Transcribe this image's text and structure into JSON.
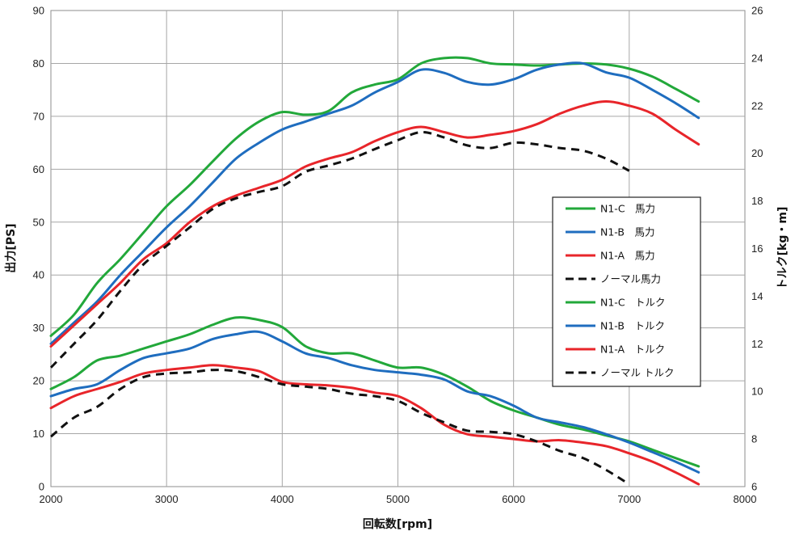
{
  "chart_data": {
    "type": "line",
    "xlabel": "回転数[rpm]",
    "ylabel_left": "出力[PS]",
    "ylabel_right": "トルク[kg・m]",
    "x_ticks": [
      "2000",
      "3000",
      "4000",
      "5000",
      "6000",
      "7000",
      "8000"
    ],
    "y_left_ticks": [
      "0",
      "10",
      "20",
      "30",
      "40",
      "50",
      "60",
      "70",
      "80",
      "90"
    ],
    "y_right_ticks": [
      "6",
      "8",
      "10",
      "12",
      "14",
      "16",
      "18",
      "20",
      "22",
      "24",
      "26"
    ],
    "xlim": [
      2000,
      8000
    ],
    "ylim_left": [
      0,
      90
    ],
    "ylim_right": [
      6,
      26
    ],
    "grid": true,
    "legend_position": "right",
    "series": [
      {
        "name": "N1-C　馬力",
        "axis": "left",
        "color": "#22a83a",
        "dash": false,
        "x": [
          2000,
          2200,
          2400,
          2600,
          2800,
          3000,
          3200,
          3400,
          3600,
          3800,
          4000,
          4200,
          4400,
          4600,
          4800,
          5000,
          5200,
          5400,
          5600,
          5800,
          6000,
          6200,
          6400,
          6600,
          6800,
          7000,
          7200,
          7400,
          7600
        ],
        "y": [
          28.5,
          32.5,
          38.5,
          43,
          48,
          53,
          57,
          61.5,
          65.8,
          69,
          70.8,
          70.3,
          71,
          74.5,
          76,
          77,
          80,
          81,
          81,
          80,
          79.8,
          79.6,
          79.8,
          80,
          79.8,
          79,
          77.5,
          75.2,
          72.8
        ]
      },
      {
        "name": "N1-B　馬力",
        "axis": "left",
        "color": "#1f6dbf",
        "dash": false,
        "x": [
          2000,
          2200,
          2400,
          2600,
          2800,
          3000,
          3200,
          3400,
          3600,
          3800,
          4000,
          4200,
          4400,
          4600,
          4800,
          5000,
          5200,
          5400,
          5600,
          5800,
          6000,
          6200,
          6400,
          6600,
          6800,
          7000,
          7200,
          7400,
          7600
        ],
        "y": [
          27,
          31,
          35,
          40,
          44.5,
          49,
          53,
          57.5,
          62,
          65,
          67.5,
          69,
          70.5,
          72,
          74.5,
          76.5,
          78.8,
          78.2,
          76.5,
          76,
          77,
          78.8,
          79.8,
          80,
          78.3,
          77.3,
          75,
          72.5,
          69.7
        ]
      },
      {
        "name": "N1-A　馬力",
        "axis": "left",
        "color": "#e8252a",
        "dash": false,
        "x": [
          2000,
          2200,
          2400,
          2600,
          2800,
          3000,
          3200,
          3400,
          3600,
          3800,
          4000,
          4200,
          4400,
          4600,
          4800,
          5000,
          5200,
          5400,
          5600,
          5800,
          6000,
          6200,
          6400,
          6600,
          6800,
          7000,
          7200,
          7400,
          7600
        ],
        "y": [
          26.5,
          30.5,
          34.5,
          38.5,
          43,
          46,
          50,
          53,
          55,
          56.5,
          58,
          60.5,
          62,
          63.2,
          65.3,
          67,
          68,
          67,
          66,
          66.5,
          67.2,
          68.5,
          70.5,
          72,
          72.8,
          72,
          70.5,
          67.5,
          64.7
        ]
      },
      {
        "name": "ノーマル馬力",
        "axis": "left",
        "color": "#111111",
        "dash": true,
        "x": [
          2000,
          2200,
          2400,
          2600,
          2800,
          3000,
          3200,
          3400,
          3600,
          3800,
          4000,
          4200,
          4400,
          4600,
          4800,
          5000,
          5200,
          5400,
          5600,
          5800,
          6000,
          6200,
          6400,
          6600,
          6800,
          7000
        ],
        "y": [
          22.5,
          27,
          31.5,
          37,
          42,
          45.5,
          49,
          52.5,
          54.5,
          55.7,
          56.8,
          59.5,
          60.7,
          62,
          63.8,
          65.5,
          67,
          66,
          64.5,
          64,
          65,
          64.7,
          64,
          63.5,
          62,
          59.7
        ]
      },
      {
        "name": "N1-C　トルク",
        "axis": "right",
        "color": "#22a83a",
        "dash": false,
        "x": [
          2000,
          2200,
          2400,
          2600,
          2800,
          3000,
          3200,
          3400,
          3600,
          3800,
          4000,
          4200,
          4400,
          4600,
          4800,
          5000,
          5200,
          5400,
          5600,
          5800,
          6000,
          6200,
          6400,
          6600,
          6800,
          7000,
          7200,
          7400,
          7600
        ],
        "y": [
          10.1,
          10.6,
          11.3,
          11.5,
          11.8,
          12.1,
          12.4,
          12.8,
          13.1,
          13.0,
          12.7,
          11.9,
          11.6,
          11.6,
          11.3,
          11.0,
          11.0,
          10.7,
          10.2,
          9.6,
          9.2,
          8.9,
          8.6,
          8.4,
          8.15,
          7.9,
          7.55,
          7.2,
          6.85
        ]
      },
      {
        "name": "N1-B　トルク",
        "axis": "right",
        "color": "#1f6dbf",
        "dash": false,
        "x": [
          2000,
          2200,
          2400,
          2600,
          2800,
          3000,
          3200,
          3400,
          3600,
          3800,
          4000,
          4200,
          4400,
          4600,
          4800,
          5000,
          5200,
          5400,
          5600,
          5800,
          6000,
          6200,
          6400,
          6600,
          6800,
          7000,
          7200,
          7400,
          7600
        ],
        "y": [
          9.8,
          10.1,
          10.3,
          10.9,
          11.4,
          11.6,
          11.8,
          12.2,
          12.4,
          12.5,
          12.1,
          11.6,
          11.4,
          11.1,
          10.9,
          10.8,
          10.7,
          10.5,
          10.0,
          9.8,
          9.4,
          8.9,
          8.7,
          8.5,
          8.2,
          7.85,
          7.45,
          7.05,
          6.6
        ]
      },
      {
        "name": "N1-A　トルク",
        "axis": "right",
        "color": "#e8252a",
        "dash": false,
        "x": [
          2000,
          2200,
          2400,
          2600,
          2800,
          3000,
          3200,
          3400,
          3600,
          3800,
          4000,
          4200,
          4400,
          4600,
          4800,
          5000,
          5200,
          5400,
          5600,
          5800,
          6000,
          6200,
          6400,
          6600,
          6800,
          7000,
          7200,
          7400,
          7600
        ],
        "y": [
          9.3,
          9.8,
          10.1,
          10.4,
          10.75,
          10.9,
          11.0,
          11.1,
          11.0,
          10.85,
          10.4,
          10.3,
          10.25,
          10.15,
          9.95,
          9.8,
          9.3,
          8.6,
          8.2,
          8.1,
          8.0,
          7.9,
          7.95,
          7.85,
          7.7,
          7.4,
          7.05,
          6.6,
          6.1
        ]
      },
      {
        "name": "ノーマル トルク",
        "axis": "right",
        "color": "#111111",
        "dash": true,
        "x": [
          2000,
          2200,
          2400,
          2600,
          2800,
          3000,
          3200,
          3400,
          3600,
          3800,
          4000,
          4200,
          4400,
          4600,
          4800,
          5000,
          5200,
          5400,
          5600,
          5800,
          6000,
          6200,
          6400,
          6600,
          6800,
          7000
        ],
        "y": [
          8.1,
          8.9,
          9.35,
          10.1,
          10.6,
          10.75,
          10.8,
          10.9,
          10.85,
          10.6,
          10.3,
          10.2,
          10.1,
          9.9,
          9.8,
          9.6,
          9.1,
          8.7,
          8.35,
          8.3,
          8.2,
          7.9,
          7.5,
          7.2,
          6.7,
          6.1
        ]
      }
    ]
  }
}
